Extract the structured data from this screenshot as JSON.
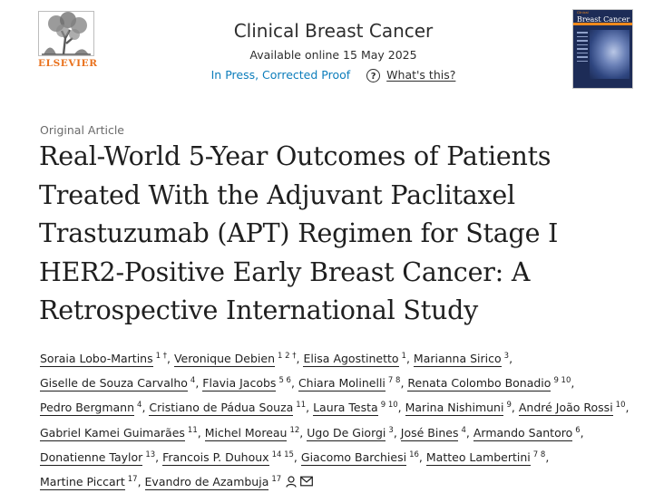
{
  "header": {
    "publisher": "ELSEVIER",
    "journal_title": "Clinical Breast Cancer",
    "available_online": "Available online 15 May 2025",
    "status": "In Press, Corrected Proof",
    "whats_this": "What's this?",
    "cover": {
      "title": "Breast Cancer",
      "subtitle": "Clinical"
    }
  },
  "article": {
    "type": "Original Article",
    "title": "Real-World 5-Year Outcomes of Patients Treated With the Adjuvant Paclitaxel Trastuzumab (APT) Regimen for Stage I HER2-Positive Early Breast Cancer: A Retrospective International Study"
  },
  "authors": [
    {
      "name": "Soraia Lobo-Martins",
      "aff": "1 †",
      "sep": ","
    },
    {
      "name": "Veronique Debien",
      "aff": "1 2 †",
      "sep": ","
    },
    {
      "name": "Elisa Agostinetto",
      "aff": "1",
      "sep": ","
    },
    {
      "name": "Marianna Sirico",
      "aff": "3",
      "sep": ","
    },
    {
      "name": "Giselle de Souza Carvalho",
      "aff": "4",
      "sep": ","
    },
    {
      "name": "Flavia Jacobs",
      "aff": "5 6",
      "sep": ","
    },
    {
      "name": "Chiara Molinelli",
      "aff": "7 8",
      "sep": ","
    },
    {
      "name": "Renata Colombo Bonadio",
      "aff": "9 10",
      "sep": ","
    },
    {
      "name": "Pedro Bergmann",
      "aff": "4",
      "sep": ","
    },
    {
      "name": "Cristiano de Pádua Souza",
      "aff": "11",
      "sep": ","
    },
    {
      "name": "Laura Testa",
      "aff": "9 10",
      "sep": ","
    },
    {
      "name": "Marina Nishimuni",
      "aff": "9",
      "sep": ","
    },
    {
      "name": "André João Rossi",
      "aff": "10",
      "sep": ","
    },
    {
      "name": "Gabriel Kamei Guimarães",
      "aff": "11",
      "sep": ","
    },
    {
      "name": "Michel Moreau",
      "aff": "12",
      "sep": ","
    },
    {
      "name": "Ugo De Giorgi",
      "aff": "3",
      "sep": ","
    },
    {
      "name": "José Bines",
      "aff": "4",
      "sep": ","
    },
    {
      "name": "Armando Santoro",
      "aff": "6",
      "sep": ","
    },
    {
      "name": "Donatienne Taylor",
      "aff": "13",
      "sep": ","
    },
    {
      "name": "Francois P. Duhoux",
      "aff": "14 15",
      "sep": ","
    },
    {
      "name": "Giacomo Barchiesi",
      "aff": "16",
      "sep": ","
    },
    {
      "name": "Matteo Lambertini",
      "aff": "7 8",
      "sep": ","
    },
    {
      "name": "Martine Piccart",
      "aff": "17",
      "sep": ","
    },
    {
      "name": "Evandro de Azambuja",
      "aff": "17",
      "sep": ""
    }
  ],
  "icons": {
    "person": "person-icon",
    "envelope": "envelope-icon"
  },
  "colors": {
    "elsevier_orange": "#e9711c",
    "link_blue": "#0c7dbb",
    "text": "#1f1f1f",
    "cover_navy": "#1d2c57"
  }
}
